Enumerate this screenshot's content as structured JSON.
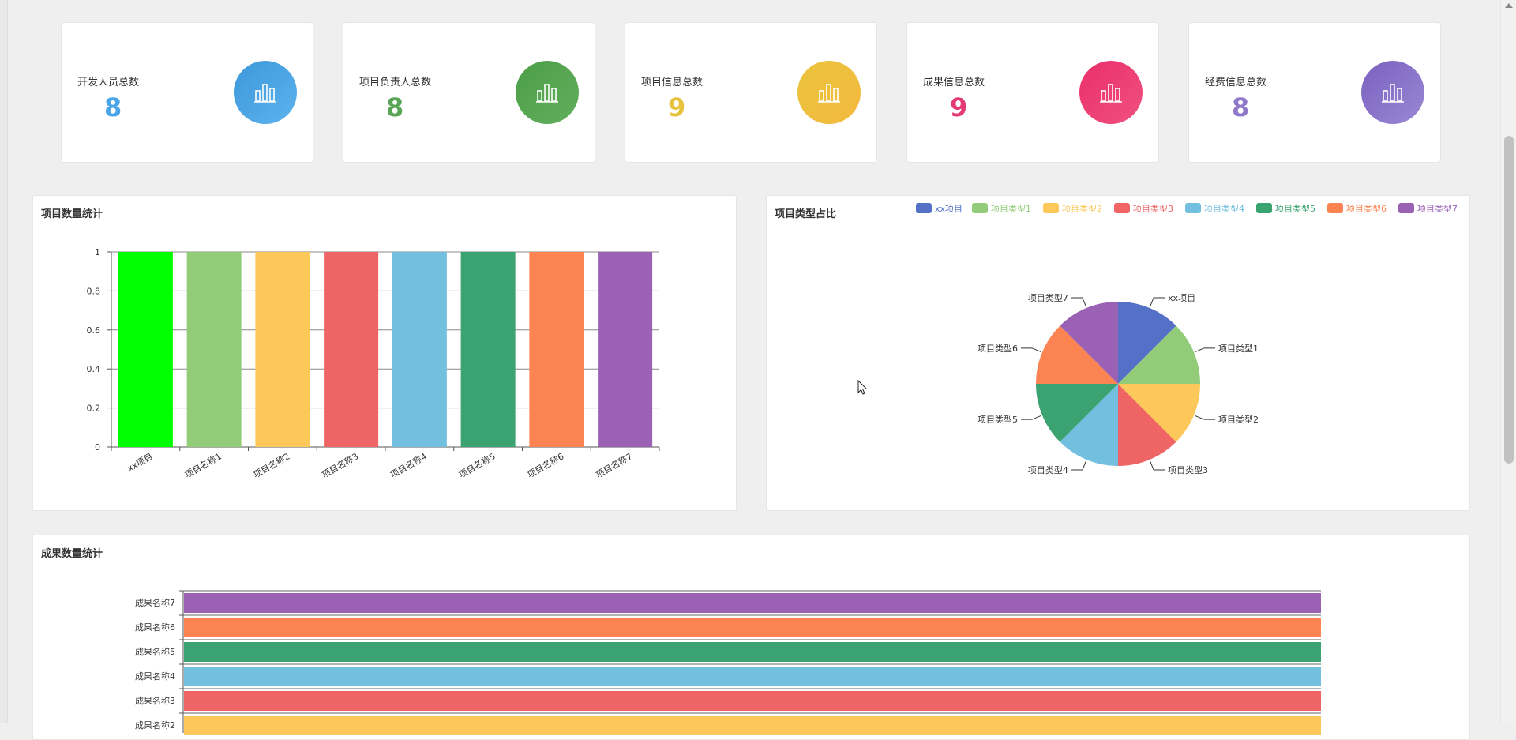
{
  "stats": [
    {
      "label": "开发人员总数",
      "value": "8",
      "color": "#4aa5e8",
      "grad_a": "#3d97d9",
      "grad_b": "#5cb3ee",
      "icon": "bar-chart-icon"
    },
    {
      "label": "项目负责人总数",
      "value": "8",
      "color": "#5aa555",
      "grad_a": "#4c9e47",
      "grad_b": "#62ae5d",
      "icon": "bar-chart-icon"
    },
    {
      "label": "项目信息总数",
      "value": "9",
      "color": "#e7c23d",
      "grad_a": "#ebc43c",
      "grad_b": "#f3b93f",
      "icon": "bar-chart-icon"
    },
    {
      "label": "成果信息总数",
      "value": "9",
      "color": "#e43b73",
      "grad_a": "#ea2f6c",
      "grad_b": "#f0517f",
      "icon": "bar-chart-icon"
    },
    {
      "label": "经费信息总数",
      "value": "8",
      "color": "#8f79c8",
      "grad_a": "#7b61bf",
      "grad_b": "#9a88d4",
      "icon": "bar-chart-icon"
    }
  ],
  "chart_data": [
    {
      "type": "bar",
      "title": "项目数量统计",
      "categories": [
        "xx项目",
        "项目名称1",
        "项目名称2",
        "项目名称3",
        "项目名称4",
        "项目名称5",
        "项目名称6",
        "项目名称7"
      ],
      "values": [
        1,
        1,
        1,
        1,
        1,
        1,
        1,
        1
      ],
      "colors": [
        "#00ff00",
        "#93cc78",
        "#fcc859",
        "#ef6566",
        "#73bfdf",
        "#3ba272",
        "#fc8452",
        "#9a61b5"
      ],
      "ylim": [
        0,
        1
      ],
      "yticks": [
        "0",
        "0.2",
        "0.4",
        "0.6",
        "0.8",
        "1"
      ],
      "grid": true
    },
    {
      "type": "pie",
      "title": "项目类型占比",
      "labels": [
        "xx项目",
        "项目类型1",
        "项目类型2",
        "项目类型3",
        "项目类型4",
        "项目类型5",
        "项目类型6",
        "项目类型7"
      ],
      "values": [
        1,
        1,
        1,
        1,
        1,
        1,
        1,
        1
      ],
      "colors": [
        "#5571c7",
        "#93cc78",
        "#fcc859",
        "#ef6566",
        "#73bfdf",
        "#3ba272",
        "#fc8452",
        "#9a61b5"
      ],
      "legend": "top-right"
    },
    {
      "type": "bar",
      "orientation": "horizontal",
      "title": "成果数量统计",
      "categories": [
        "成果名称7",
        "成果名称6",
        "成果名称5",
        "成果名称4",
        "成果名称3",
        "成果名称2"
      ],
      "values": [
        1,
        1,
        1,
        1,
        1,
        1
      ],
      "colors": [
        "#9a61b5",
        "#fc8452",
        "#3ba272",
        "#73bfdf",
        "#ef6566",
        "#fcc859"
      ]
    }
  ]
}
